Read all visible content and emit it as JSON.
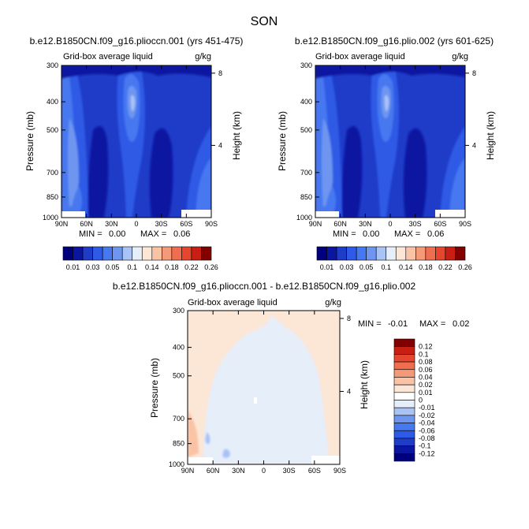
{
  "page_title": "SON",
  "chart_data": [
    {
      "type": "heatmap",
      "title": "b.e12.B1850CN.f09_g16.plioccn.001 (yrs 451-475)",
      "subtitle_left": "Grid-box average liquid",
      "subtitle_right": "g/kg",
      "ylabel": "Pressure (mb)",
      "ylabel_right": "Height (km)",
      "x_ticks": [
        "90N",
        "60N",
        "30N",
        "0",
        "30S",
        "60S",
        "90S"
      ],
      "y_ticks": [
        "300",
        "400",
        "500",
        "700",
        "850",
        "1000"
      ],
      "y_right_ticks": [
        "8",
        "4"
      ],
      "stats": {
        "min_label": "MIN =",
        "min": "0.00",
        "max_label": "MAX =",
        "max": "0.06"
      },
      "colorbar": {
        "orientation": "horizontal",
        "labels": [
          "0.01",
          "0.03",
          "0.05",
          "0.1",
          "0.14",
          "0.18",
          "0.22",
          "0.26"
        ],
        "colors": [
          "#00007f",
          "#0a16a0",
          "#1e3cc8",
          "#2d5ae6",
          "#4678f0",
          "#6e96f0",
          "#aac3f5",
          "#e6eefa",
          "#fce6d6",
          "#fac3a5",
          "#f59a78",
          "#f06e50",
          "#e6462d",
          "#c81e14",
          "#820000"
        ]
      }
    },
    {
      "type": "heatmap",
      "title": "b.e12.B1850CN.f09_g16.plio.002 (yrs 601-625)",
      "subtitle_left": "Grid-box average liquid",
      "subtitle_right": "g/kg",
      "ylabel": "Pressure (mb)",
      "ylabel_right": "Height (km)",
      "x_ticks": [
        "90N",
        "60N",
        "30N",
        "0",
        "30S",
        "60S",
        "90S"
      ],
      "y_ticks": [
        "300",
        "400",
        "500",
        "700",
        "850",
        "1000"
      ],
      "y_right_ticks": [
        "8",
        "4"
      ],
      "stats": {
        "min_label": "MIN =",
        "min": "0.00",
        "max_label": "MAX =",
        "max": "0.06"
      },
      "colorbar": {
        "orientation": "horizontal",
        "labels": [
          "0.01",
          "0.03",
          "0.05",
          "0.1",
          "0.14",
          "0.18",
          "0.22",
          "0.26"
        ],
        "colors": [
          "#00007f",
          "#0a16a0",
          "#1e3cc8",
          "#2d5ae6",
          "#4678f0",
          "#6e96f0",
          "#aac3f5",
          "#e6eefa",
          "#fce6d6",
          "#fac3a5",
          "#f59a78",
          "#f06e50",
          "#e6462d",
          "#c81e14",
          "#820000"
        ]
      }
    },
    {
      "type": "heatmap",
      "title": "b.e12.B1850CN.f09_g16.plioccn.001 - b.e12.B1850CN.f09_g16.plio.002",
      "subtitle_left": "Grid-box average liquid",
      "subtitle_right": "g/kg",
      "ylabel": "Pressure (mb)",
      "ylabel_right": "Height (km)",
      "x_ticks": [
        "90N",
        "60N",
        "30N",
        "0",
        "30S",
        "60S",
        "90S"
      ],
      "y_ticks": [
        "300",
        "400",
        "500",
        "700",
        "850",
        "1000"
      ],
      "y_right_ticks": [
        "8",
        "4"
      ],
      "stats": {
        "min_label": "MIN =",
        "min": "-0.01",
        "max_label": "MAX =",
        "max": "0.02"
      },
      "colorbar": {
        "orientation": "vertical",
        "labels": [
          "0.12",
          "0.1",
          "0.08",
          "0.06",
          "0.04",
          "0.02",
          "0.01",
          "0",
          "-0.01",
          "-0.02",
          "-0.04",
          "-0.06",
          "-0.08",
          "-0.1",
          "-0.12"
        ],
        "colors": [
          "#820000",
          "#c81e14",
          "#e6462d",
          "#f06e50",
          "#f59a78",
          "#fac3a5",
          "#fce6d6",
          "#ffffff",
          "#e6eefa",
          "#aac3f5",
          "#6e96f0",
          "#4678f0",
          "#2d5ae6",
          "#1e3cc8",
          "#0a16a0",
          "#00007f"
        ]
      }
    }
  ]
}
